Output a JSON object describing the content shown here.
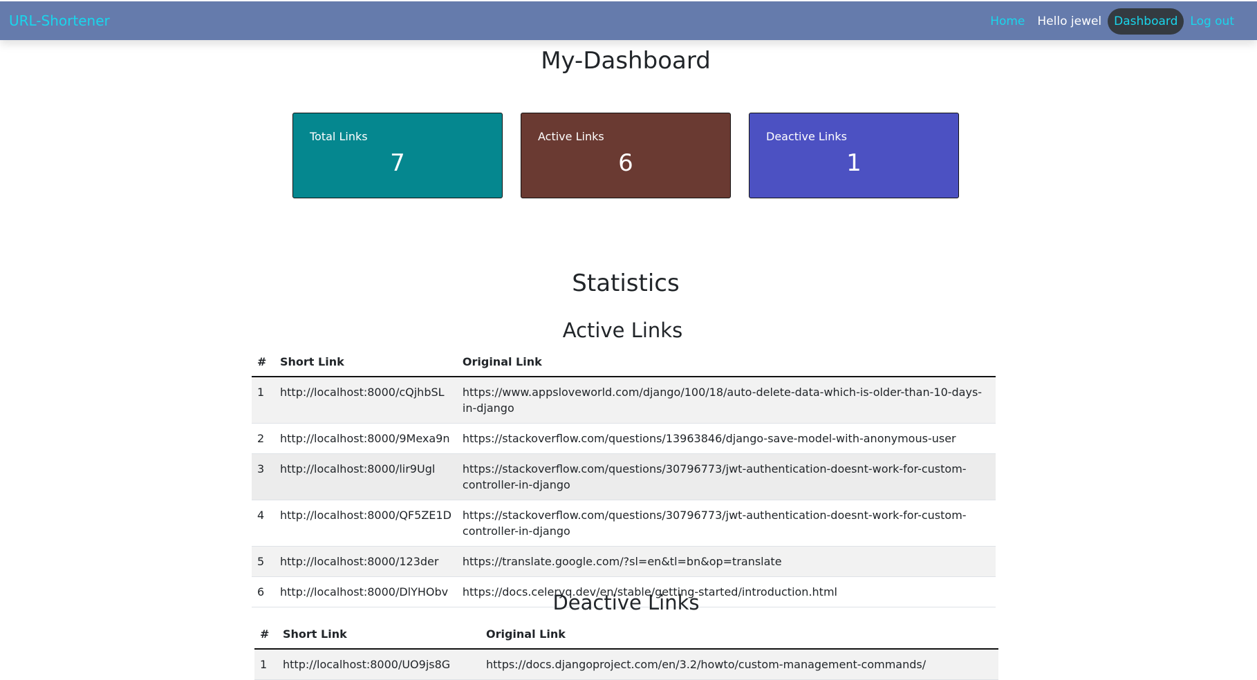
{
  "nav": {
    "brand": "URL-Shortener",
    "home": "Home",
    "greeting": "Hello jewel",
    "dashboard": "Dashboard",
    "logout": "Log out"
  },
  "page": {
    "title": "My-Dashboard"
  },
  "cards": [
    {
      "label": "Total Links",
      "value": "7",
      "color": "#05878f"
    },
    {
      "label": "Active Links",
      "value": "6",
      "color": "#6a3a32"
    },
    {
      "label": "Deactive Links",
      "value": "1",
      "color": "#4c51c2"
    }
  ],
  "statistics": {
    "heading": "Statistics",
    "active": {
      "heading": "Active Links",
      "columns": [
        "#",
        "Short Link",
        "Original Link"
      ],
      "rows": [
        [
          "1",
          "http://localhost:8000/cQjhbSL",
          "https://www.appsloveworld.com/django/100/18/auto-delete-data-which-is-older-than-10-days-in-django"
        ],
        [
          "2",
          "http://localhost:8000/9Mexa9n",
          "https://stackoverflow.com/questions/13963846/django-save-model-with-anonymous-user"
        ],
        [
          "3",
          "http://localhost:8000/lir9Ugl",
          "https://stackoverflow.com/questions/30796773/jwt-authentication-doesnt-work-for-custom-controller-in-django"
        ],
        [
          "4",
          "http://localhost:8000/QF5ZE1D",
          "https://stackoverflow.com/questions/30796773/jwt-authentication-doesnt-work-for-custom-controller-in-django"
        ],
        [
          "5",
          "http://localhost:8000/123der",
          "https://translate.google.com/?sl=en&tl=bn&op=translate"
        ],
        [
          "6",
          "http://localhost:8000/DlYHObv",
          "https://docs.celeryq.dev/en/stable/getting-started/introduction.html"
        ]
      ]
    },
    "deactive": {
      "heading": "Deactive Links",
      "columns": [
        "#",
        "Short Link",
        "Original Link"
      ],
      "rows": [
        [
          "1",
          "http://localhost:8000/UO9js8G",
          "https://docs.djangoproject.com/en/3.2/howto/custom-management-commands/"
        ]
      ]
    }
  }
}
